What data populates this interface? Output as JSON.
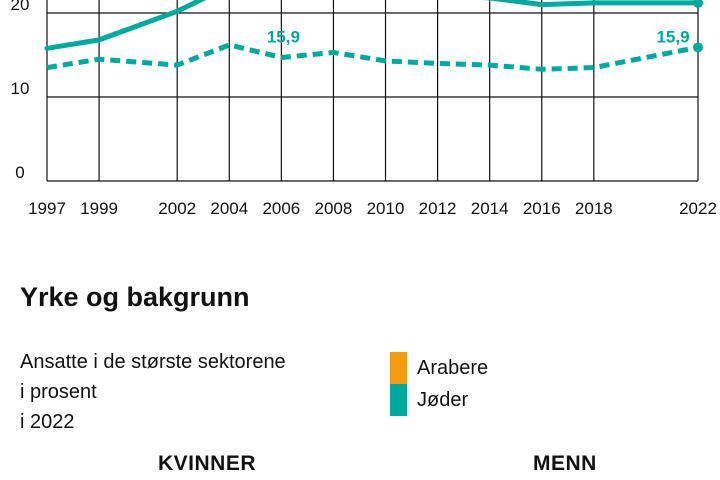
{
  "chart_data": {
    "type": "line",
    "x": [
      "1997",
      "1999",
      "2002",
      "2004",
      "2006",
      "2008",
      "2010",
      "2012",
      "2014",
      "2016",
      "2018",
      "2022"
    ],
    "x_numeric": [
      1997,
      1999,
      2002,
      2004,
      2006,
      2008,
      2010,
      2012,
      2014,
      2016,
      2018,
      2022
    ],
    "ylim": [
      0,
      22
    ],
    "yticks": [
      0,
      10,
      20
    ],
    "series": [
      {
        "name": "",
        "style": "solid",
        "color": "#00a99d",
        "points": [
          [
            1997,
            15.8
          ],
          [
            1999,
            16.8
          ],
          [
            2002,
            20.2
          ],
          [
            2004,
            23.2
          ],
          [
            2014,
            21.8
          ],
          [
            2016,
            21.0
          ],
          [
            2018,
            21.2
          ],
          [
            2022,
            21.2
          ]
        ]
      },
      {
        "name": "",
        "style": "dashed",
        "color": "#00a99d",
        "points": [
          [
            1997,
            13.5
          ],
          [
            1999,
            14.5
          ],
          [
            2002,
            13.8
          ],
          [
            2004,
            16.2
          ],
          [
            2006,
            14.7
          ],
          [
            2008,
            15.3
          ],
          [
            2010,
            14.3
          ],
          [
            2012,
            14.0
          ],
          [
            2014,
            13.8
          ],
          [
            2016,
            13.3
          ],
          [
            2018,
            13.5
          ],
          [
            2022,
            15.9
          ]
        ]
      }
    ],
    "annotations": [
      {
        "x": 2006,
        "y": 15.9,
        "text": "15,9"
      },
      {
        "x": 2022,
        "y": 15.9,
        "text": "15,9"
      }
    ]
  },
  "section": {
    "title": "Yrke og bakgrunn",
    "subtitle_lines": [
      "Ansatte i de største sektorene",
      "i prosent",
      "i 2022"
    ]
  },
  "legend": [
    {
      "label": "Arabere",
      "color": "#f39c12"
    },
    {
      "label": "Jøder",
      "color": "#00a99d"
    }
  ],
  "columns": {
    "left": "KVINNER",
    "right": "MENN"
  }
}
